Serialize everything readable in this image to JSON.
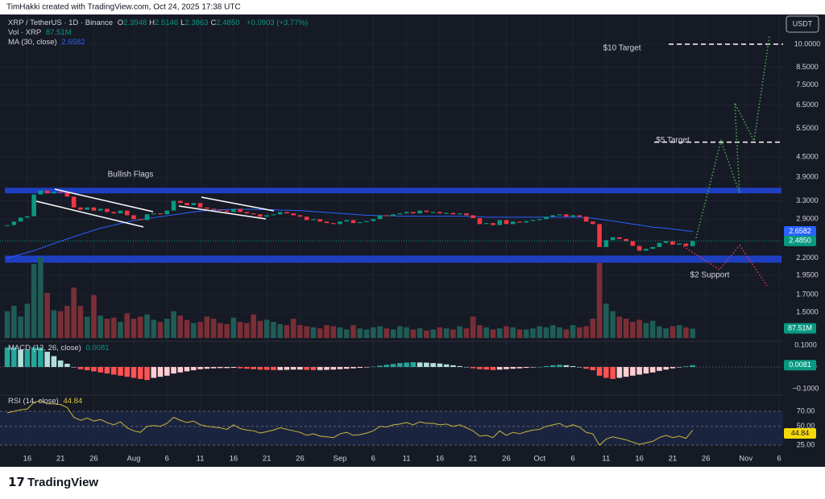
{
  "header": {
    "credit": "TimHakki created with TradingView.com, Oct 24, 2025 17:38 UTC",
    "symbol": "XRP / TetherUS · 1D · Binance",
    "ohlc": [
      {
        "key": "O",
        "text": "2.3948"
      },
      {
        "key": "H",
        "text": "2.5146"
      },
      {
        "key": "L",
        "text": "2.3863"
      },
      {
        "key": "C",
        "text": "2.4850"
      }
    ],
    "change": "+0.0903 (+3.77%)",
    "vol_value": "87.51M",
    "ma_value": "2.6582",
    "macd_value": "0.0081",
    "rsi_value": "44.84",
    "currency": "USDT"
  },
  "footer": {
    "logo": "TradingView"
  },
  "chart_data": {
    "type": "candlestick",
    "x": [
      0,
      1,
      2,
      3,
      4,
      5,
      6,
      7,
      8,
      9,
      10,
      11,
      12,
      13,
      14,
      15,
      16,
      17,
      18,
      19,
      20,
      21,
      22,
      23,
      24,
      25,
      26,
      27,
      28,
      29,
      30,
      31,
      32,
      33,
      34,
      35,
      36,
      37,
      38,
      39,
      40,
      41,
      42,
      43,
      44,
      45,
      46,
      47,
      48,
      49,
      50,
      51,
      52,
      53,
      54,
      55,
      56,
      57,
      58,
      59,
      60,
      61,
      62,
      63,
      64,
      65,
      66,
      67,
      68,
      69,
      70,
      71,
      72,
      73,
      74,
      75,
      76,
      77,
      78,
      79,
      80,
      81,
      82,
      83,
      84,
      85,
      86,
      87,
      88,
      89,
      90,
      91,
      92,
      93,
      94,
      95,
      96,
      97,
      98,
      99,
      100,
      101,
      102,
      103
    ],
    "xlim": [
      -1.1,
      116.6
    ],
    "xticks": [
      {
        "value": 3,
        "label": "16"
      },
      {
        "value": 8,
        "label": "21"
      },
      {
        "value": 13,
        "label": "26"
      },
      {
        "value": 19,
        "label": "Aug"
      },
      {
        "value": 24,
        "label": "6"
      },
      {
        "value": 29,
        "label": "11"
      },
      {
        "value": 34,
        "label": "16"
      },
      {
        "value": 39,
        "label": "21"
      },
      {
        "value": 44,
        "label": "26"
      },
      {
        "value": 50,
        "label": "Sep"
      },
      {
        "value": 55,
        "label": "6"
      },
      {
        "value": 60,
        "label": "11"
      },
      {
        "value": 65,
        "label": "16"
      },
      {
        "value": 70,
        "label": "21"
      },
      {
        "value": 75,
        "label": "26"
      },
      {
        "value": 80,
        "label": "Oct"
      },
      {
        "value": 85,
        "label": "6"
      },
      {
        "value": 90,
        "label": "11"
      },
      {
        "value": 95,
        "label": "16"
      },
      {
        "value": 100,
        "label": "21"
      },
      {
        "value": 105,
        "label": "26"
      },
      {
        "value": 111,
        "label": "Nov"
      },
      {
        "value": 116,
        "label": "6"
      }
    ],
    "ylim": [
      1.25,
      12.2
    ],
    "log_scale": true,
    "yticks": [
      {
        "value": 10,
        "label": "10.0000"
      },
      {
        "value": 8.5,
        "label": "8.5000"
      },
      {
        "value": 7.5,
        "label": "7.5000"
      },
      {
        "value": 6.5,
        "label": "6.5000"
      },
      {
        "value": 5.5,
        "label": "5.5000"
      },
      {
        "value": 4.5,
        "label": "4.5000"
      },
      {
        "value": 3.9,
        "label": "3.9000"
      },
      {
        "value": 3.3,
        "label": "3.3000"
      },
      {
        "value": 2.9,
        "label": "2.9000"
      },
      {
        "value": 2.2,
        "label": "2.2000"
      },
      {
        "value": 1.95,
        "label": "1.9500"
      },
      {
        "value": 1.7,
        "label": "1.7000"
      },
      {
        "value": 1.5,
        "label": "1.5000"
      }
    ],
    "grid": true,
    "series": [
      {
        "name": "XRP",
        "up_color": "#089981",
        "down_color": "#f23645",
        "values": [
          2.78,
          2.85,
          2.93,
          2.96,
          3.45,
          3.55,
          3.48,
          3.52,
          3.5,
          3.4,
          3.15,
          3.1,
          3.15,
          3.08,
          3.12,
          3.05,
          3.02,
          3.08,
          2.98,
          2.9,
          2.88,
          3.0,
          3.02,
          3.0,
          3.08,
          3.3,
          3.25,
          3.2,
          3.25,
          3.15,
          3.12,
          3.1,
          3.08,
          3.05,
          3.12,
          3.05,
          3.02,
          3.0,
          2.95,
          2.98,
          3.0,
          3.05,
          3.02,
          2.98,
          2.95,
          2.88,
          2.9,
          2.85,
          2.82,
          2.8,
          2.85,
          2.88,
          2.82,
          2.84,
          2.86,
          2.9,
          2.98,
          2.96,
          3.0,
          3.02,
          3.05,
          3.02,
          3.08,
          3.05,
          3.05,
          3.02,
          3.03,
          3.0,
          3.02,
          2.98,
          2.92,
          2.8,
          2.82,
          2.78,
          2.88,
          2.8,
          2.85,
          2.83,
          2.86,
          2.88,
          2.9,
          2.95,
          2.98,
          3.0,
          2.95,
          2.98,
          2.95,
          2.85,
          2.8,
          2.38,
          2.5,
          2.55,
          2.52,
          2.48,
          2.4,
          2.32,
          2.35,
          2.38,
          2.45,
          2.48,
          2.42,
          2.44,
          2.3948,
          2.485
        ]
      },
      {
        "name": "MA (30, close)",
        "color": "#2962ff",
        "values": [
          2.2,
          2.23,
          2.26,
          2.29,
          2.32,
          2.36,
          2.4,
          2.44,
          2.48,
          2.52,
          2.56,
          2.6,
          2.64,
          2.68,
          2.72,
          2.75,
          2.78,
          2.81,
          2.84,
          2.87,
          2.89,
          2.91,
          2.93,
          2.95,
          2.97,
          2.99,
          3.01,
          3.03,
          3.05,
          3.07,
          3.08,
          3.09,
          3.1,
          3.1,
          3.11,
          3.11,
          3.11,
          3.11,
          3.1,
          3.1,
          3.1,
          3.09,
          3.09,
          3.08,
          3.08,
          3.07,
          3.06,
          3.05,
          3.04,
          3.03,
          3.02,
          3.01,
          3.0,
          2.99,
          2.98,
          2.98,
          2.97,
          2.97,
          2.97,
          2.96,
          2.96,
          2.96,
          2.96,
          2.96,
          2.96,
          2.96,
          2.96,
          2.96,
          2.96,
          2.96,
          2.95,
          2.95,
          2.94,
          2.94,
          2.94,
          2.94,
          2.94,
          2.94,
          2.94,
          2.94,
          2.94,
          2.94,
          2.94,
          2.94,
          2.94,
          2.94,
          2.94,
          2.93,
          2.92,
          2.9,
          2.88,
          2.86,
          2.84,
          2.82,
          2.8,
          2.78,
          2.76,
          2.74,
          2.73,
          2.72,
          2.7,
          2.69,
          2.67,
          2.6582
        ]
      }
    ],
    "volume": {
      "name": "Vol · XRP",
      "ylim": [
        0,
        750
      ],
      "up_color": "#1f5c55",
      "down_color": "#7a2e36",
      "values": [
        250,
        300,
        200,
        320,
        690,
        750,
        420,
        260,
        250,
        300,
        470,
        300,
        200,
        400,
        210,
        180,
        190,
        150,
        230,
        180,
        200,
        220,
        170,
        150,
        180,
        250,
        210,
        170,
        140,
        150,
        200,
        180,
        140,
        130,
        190,
        150,
        140,
        220,
        160,
        170,
        150,
        130,
        120,
        180,
        120,
        110,
        100,
        90,
        120,
        110,
        100,
        80,
        120,
        90,
        80,
        100,
        110,
        90,
        80,
        110,
        100,
        80,
        90,
        70,
        80,
        100,
        90,
        80,
        110,
        90,
        200,
        120,
        100,
        80,
        90,
        110,
        100,
        80,
        80,
        90,
        110,
        100,
        120,
        100,
        80,
        120,
        100,
        110,
        180,
        700,
        320,
        250,
        200,
        180,
        150,
        170,
        140,
        160,
        110,
        90,
        110,
        120,
        100,
        87.51
      ]
    },
    "macd": {
      "name": "MACD (12, 26, close)",
      "ylim": [
        -0.126,
        0.1185
      ],
      "yticks": [
        {
          "value": 0.1,
          "label": "0.1000"
        },
        {
          "value": 0,
          "label": "0.0000"
        },
        {
          "value": -0.1,
          "label": "−0.1000"
        }
      ],
      "colors": [
        "#26a69a",
        "#b2dfdb",
        "#ff5252",
        "#ffcdd2"
      ],
      "values": [
        0.09,
        0.09,
        0.08,
        0.08,
        0.09,
        0.09,
        0.07,
        0.05,
        0.03,
        0.015,
        0.0,
        -0.01,
        -0.015,
        -0.02,
        -0.025,
        -0.03,
        -0.035,
        -0.04,
        -0.045,
        -0.05,
        -0.055,
        -0.06,
        -0.05,
        -0.045,
        -0.04,
        -0.03,
        -0.025,
        -0.02,
        -0.015,
        -0.01,
        -0.008,
        -0.006,
        -0.005,
        -0.005,
        -0.004,
        -0.006,
        -0.008,
        -0.01,
        -0.012,
        -0.013,
        -0.014,
        -0.014,
        -0.013,
        -0.012,
        -0.012,
        -0.013,
        -0.014,
        -0.014,
        -0.013,
        -0.012,
        -0.01,
        -0.008,
        -0.006,
        -0.004,
        -0.002,
        0.002,
        0.006,
        0.01,
        0.014,
        0.018,
        0.02,
        0.022,
        0.021,
        0.02,
        0.018,
        0.016,
        0.012,
        0.008,
        0.004,
        0.0,
        -0.006,
        -0.01,
        -0.012,
        -0.014,
        -0.012,
        -0.01,
        -0.008,
        -0.006,
        -0.004,
        -0.002,
        0.0,
        0.004,
        0.008,
        0.01,
        0.008,
        0.004,
        0.0,
        -0.008,
        -0.015,
        -0.04,
        -0.05,
        -0.055,
        -0.05,
        -0.045,
        -0.04,
        -0.035,
        -0.03,
        -0.025,
        -0.018,
        -0.012,
        -0.006,
        -0.002,
        0.003,
        0.0081
      ]
    },
    "rsi": {
      "name": "RSI (14, close)",
      "color": "#c9b63c",
      "ylim": [
        15.4,
        90.4
      ],
      "yticks": [
        {
          "value": 70,
          "label": "70.00"
        },
        {
          "value": 50,
          "label": "50.00"
        },
        {
          "value": 25,
          "label": "25.00"
        }
      ],
      "values": [
        68,
        70,
        72,
        73,
        82,
        84,
        80,
        80,
        79,
        75,
        62,
        58,
        61,
        57,
        59,
        55,
        52,
        56,
        48,
        44,
        42,
        50,
        51,
        50,
        54,
        62,
        58,
        55,
        57,
        52,
        50,
        49,
        48,
        46,
        52,
        47,
        45,
        44,
        41,
        43,
        45,
        48,
        46,
        44,
        42,
        38,
        40,
        37,
        36,
        35,
        40,
        42,
        38,
        39,
        41,
        44,
        50,
        49,
        52,
        53,
        55,
        52,
        56,
        54,
        54,
        52,
        53,
        50,
        52,
        48,
        44,
        37,
        38,
        35,
        44,
        38,
        42,
        40,
        43,
        45,
        46,
        50,
        52,
        54,
        49,
        52,
        49,
        42,
        40,
        25,
        33,
        36,
        34,
        32,
        29,
        26,
        28,
        30,
        35,
        38,
        35,
        37,
        34,
        44.84
      ]
    },
    "zones": [
      {
        "range": [
          3.48,
          3.62
        ],
        "color": "#1f3fc2"
      },
      {
        "range": [
          2.13,
          2.24
        ],
        "color": "#1f3fc2"
      }
    ],
    "levels": [
      {
        "value": 10,
        "label": "$10 Target"
      },
      {
        "value": 5,
        "label": "$5 Target"
      }
    ],
    "annotations": [
      "Bullish Flags",
      "$2 Support"
    ]
  }
}
